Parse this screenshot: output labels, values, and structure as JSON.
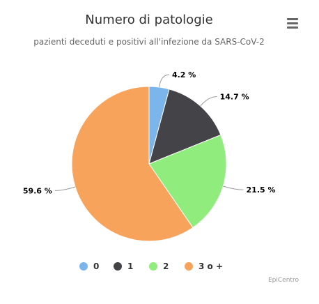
{
  "chart_data": {
    "type": "pie",
    "title": "Numero di patologie",
    "subtitle": "pazienti deceduti e positivi all'infezione da SARS-CoV-2",
    "categories": [
      "0",
      "1",
      "2",
      "3 o +"
    ],
    "values": [
      4.2,
      14.7,
      21.5,
      59.6
    ],
    "labels": [
      "4.2 %",
      "14.7 %",
      "21.5 %",
      "59.6 %"
    ],
    "colors": [
      "#7cb5ec",
      "#434348",
      "#90ed7d",
      "#f7a35c"
    ],
    "legend_position": "bottom"
  },
  "menu": {
    "icon": "hamburger-menu-icon"
  },
  "credits": {
    "text": "EpiCentro"
  }
}
